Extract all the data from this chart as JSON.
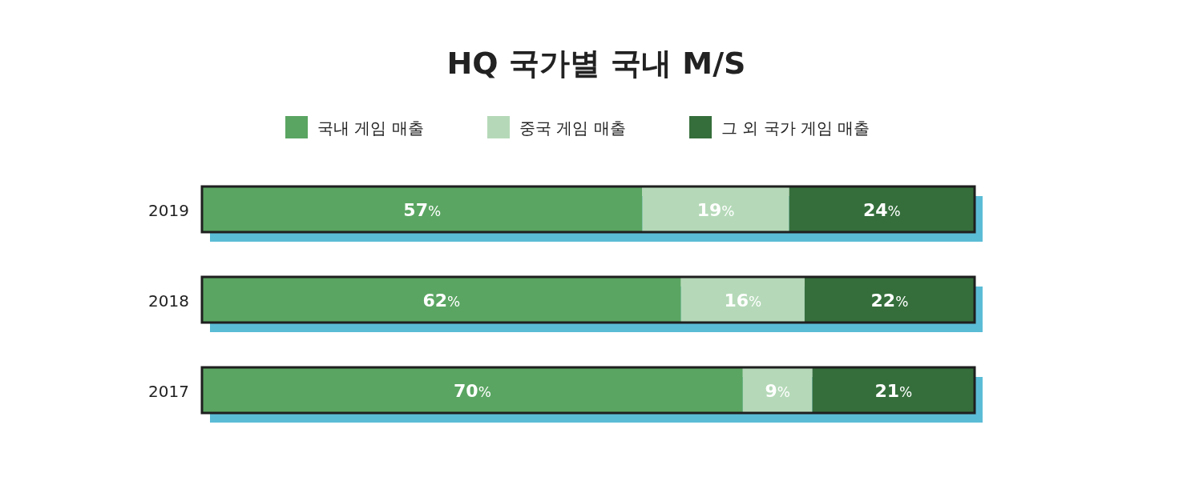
{
  "chart_data": {
    "type": "bar",
    "orientation": "horizontal",
    "stacked": true,
    "title": "HQ 국가별 국내 M/S",
    "categories": [
      "2019",
      "2018",
      "2017"
    ],
    "series": [
      {
        "name": "국내 게임 매출",
        "color": "#5aa562",
        "values": [
          57,
          62,
          70
        ],
        "value_labels": [
          "57%",
          "62%",
          "70%"
        ]
      },
      {
        "name": "중국 게임 매출",
        "color": "#b5d9b8",
        "values": [
          19,
          16,
          9
        ],
        "value_labels": [
          "19%",
          "16%",
          "9%"
        ]
      },
      {
        "name": "그 외 국가 게임 매출",
        "color": "#356e3b",
        "values": [
          24,
          22,
          21
        ],
        "value_labels": [
          "24%",
          "22%",
          "21%"
        ]
      }
    ],
    "legend": "top",
    "tick_labels": "y"
  }
}
